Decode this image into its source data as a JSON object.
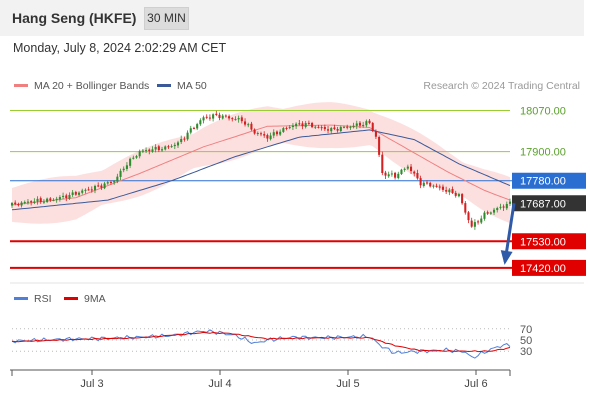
{
  "header": {
    "title": "Hang Seng (HKFE)",
    "timeframe": "30 MIN"
  },
  "datetime": "Monday, July 8, 2024 2:02:29 AM CET",
  "legend": {
    "ma20_label": "MA 20 + Bollinger Bands",
    "ma50_label": "MA 50",
    "credit": "Research © 2024 Trading Central",
    "rsi_label": "RSI",
    "rsi_ma_label": "9MA"
  },
  "colors": {
    "up": "#2e8b2e",
    "down": "#d42020",
    "ma20": "#f08080",
    "ma50": "#3b5998",
    "band": "#fbd5d5",
    "resistance": "#9acd32",
    "support": "#e00000",
    "pivot": "#2b6ed2",
    "rsi": "#4f7fd9",
    "rsi_ma": "#e00000"
  },
  "chart_data": [
    {
      "type": "candlestick",
      "ylim": [
        17370,
        18130
      ],
      "x_ticks": [
        "Jul 3",
        "Jul 4",
        "Jul 5",
        "Jul 6"
      ],
      "levels": [
        {
          "value": 18070.0,
          "label": "18070.00",
          "kind": "resistance"
        },
        {
          "value": 17900.0,
          "label": "17900.00",
          "kind": "resistance"
        },
        {
          "value": 17780.0,
          "label": "17780.00",
          "kind": "pivot"
        },
        {
          "value": 17687.0,
          "label": "17687.00",
          "kind": "last"
        },
        {
          "value": 17530.0,
          "label": "17530.00",
          "kind": "support"
        },
        {
          "value": 17420.0,
          "label": "17420.00",
          "kind": "support"
        }
      ],
      "anchors": [
        [
          0,
          17680
        ],
        [
          6,
          17695
        ],
        [
          12,
          17700
        ],
        [
          18,
          17720
        ],
        [
          24,
          17745
        ],
        [
          28,
          17760
        ],
        [
          32,
          17780
        ],
        [
          36,
          17850
        ],
        [
          40,
          17900
        ],
        [
          44,
          17910
        ],
        [
          48,
          17915
        ],
        [
          52,
          17935
        ],
        [
          56,
          17990
        ],
        [
          60,
          18040
        ],
        [
          64,
          18050
        ],
        [
          68,
          18040
        ],
        [
          72,
          18030
        ],
        [
          76,
          17980
        ],
        [
          80,
          17960
        ],
        [
          84,
          17985
        ],
        [
          88,
          18010
        ],
        [
          92,
          18015
        ],
        [
          96,
          18000
        ],
        [
          100,
          17990
        ],
        [
          104,
          18000
        ],
        [
          108,
          18010
        ],
        [
          112,
          18020
        ],
        [
          114,
          17960
        ],
        [
          116,
          17810
        ],
        [
          120,
          17800
        ],
        [
          124,
          17840
        ],
        [
          128,
          17770
        ],
        [
          132,
          17760
        ],
        [
          136,
          17740
        ],
        [
          140,
          17720
        ],
        [
          142,
          17650
        ],
        [
          144,
          17590
        ],
        [
          148,
          17640
        ],
        [
          152,
          17665
        ],
        [
          156,
          17687
        ]
      ],
      "series": [
        {
          "name": "MA 20",
          "anchors": [
            [
              0,
              17680
            ],
            [
              20,
              17710
            ],
            [
              40,
              17810
            ],
            [
              60,
              17920
            ],
            [
              80,
              18005
            ],
            [
              100,
              18010
            ],
            [
              112,
              18000
            ],
            [
              124,
              17910
            ],
            [
              136,
              17820
            ],
            [
              148,
              17740
            ],
            [
              156,
              17700
            ]
          ]
        },
        {
          "name": "MA 50",
          "anchors": [
            [
              0,
              17660
            ],
            [
              30,
              17700
            ],
            [
              50,
              17780
            ],
            [
              70,
              17880
            ],
            [
              90,
              17960
            ],
            [
              112,
              17990
            ],
            [
              126,
              17950
            ],
            [
              140,
              17850
            ],
            [
              156,
              17760
            ]
          ]
        }
      ],
      "band_width": 70,
      "projection": {
        "from": 17687,
        "to": 17420
      }
    },
    {
      "type": "line",
      "name": "RSI",
      "yticks": [
        70,
        50,
        30
      ],
      "ylim": [
        0,
        100
      ],
      "anchors": [
        [
          0,
          48
        ],
        [
          10,
          50
        ],
        [
          20,
          52
        ],
        [
          30,
          53
        ],
        [
          40,
          55
        ],
        [
          50,
          58
        ],
        [
          60,
          66
        ],
        [
          64,
          64
        ],
        [
          70,
          58
        ],
        [
          76,
          44
        ],
        [
          80,
          50
        ],
        [
          88,
          55
        ],
        [
          96,
          54
        ],
        [
          104,
          55
        ],
        [
          112,
          56
        ],
        [
          116,
          38
        ],
        [
          120,
          27
        ],
        [
          128,
          30
        ],
        [
          136,
          32
        ],
        [
          142,
          29
        ],
        [
          144,
          18
        ],
        [
          148,
          28
        ],
        [
          152,
          38
        ],
        [
          156,
          42
        ]
      ],
      "ma_anchors": [
        [
          0,
          47
        ],
        [
          20,
          51
        ],
        [
          40,
          54
        ],
        [
          60,
          63
        ],
        [
          68,
          62
        ],
        [
          80,
          52
        ],
        [
          96,
          54
        ],
        [
          112,
          54
        ],
        [
          120,
          40
        ],
        [
          128,
          31
        ],
        [
          142,
          30
        ],
        [
          150,
          30
        ],
        [
          156,
          36
        ]
      ]
    }
  ]
}
